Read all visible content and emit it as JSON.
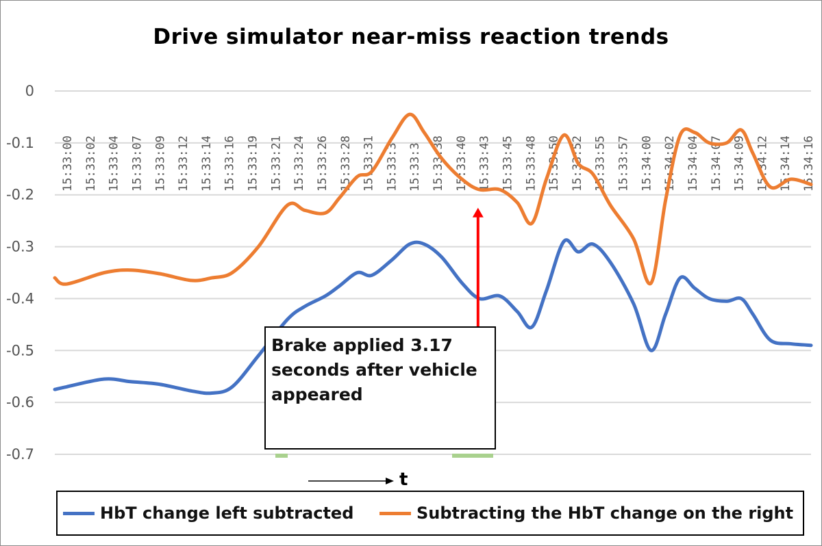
{
  "chart_data": {
    "type": "line",
    "title": "Drive simulator near-miss reaction trends",
    "xlabel": "t",
    "ylabel": "",
    "ylim": [
      -0.7,
      0
    ],
    "yticks": [
      "0",
      "-0.1",
      "-0.2",
      "-0.3",
      "-0.4",
      "-0.5",
      "-0.6",
      "-0.7"
    ],
    "yticks_values": [
      0,
      -0.1,
      -0.2,
      -0.3,
      -0.4,
      -0.5,
      -0.6,
      -0.7
    ],
    "grid": true,
    "legend_position": "bottom",
    "xticks": [
      "15:33:00",
      "15:33:02",
      "15:33:04",
      "15:33:07",
      "15:33:09",
      "15:33:12",
      "15:33:14",
      "15:33:16",
      "15:33:19",
      "15:33:21",
      "15:33:24",
      "15:33:26",
      "15:33:28",
      "15:33:31",
      "15:33:33",
      "15:33:36",
      "15:33:38",
      "15:33:40",
      "15:33:43",
      "15:33:45",
      "15:33:48",
      "15:33:50",
      "15:33:52",
      "15:33:55",
      "15:33:57",
      "15:34:00",
      "15:34:02",
      "15:34:04",
      "15:34:07",
      "15:34:09",
      "15:34:12",
      "15:34:14",
      "15:34:16"
    ],
    "xticks_shown": [
      "15:33:00",
      "15:33:02",
      "15:33:04",
      "15:33:07",
      "15:33:09",
      "15:33:12",
      "15:33:14",
      "15:33:16",
      "15:33:19",
      "15:33:21",
      "15:33:24",
      "15:33:26",
      "15:33:28",
      "15:33:31",
      "15:33:3",
      "15:33:3",
      "15:33:38",
      "15:33:40",
      "15:33:43",
      "15:33:45",
      "15:33:48",
      "15:33:50",
      "15:33:52",
      "15:33:55",
      "15:33:57",
      "15:34:00",
      "15:34:02",
      "15:34:04",
      "15:34:07",
      "15:34:09",
      "15:34:12",
      "15:34:14",
      "15:34:16"
    ],
    "series": [
      {
        "name": "HbT change left subtracted",
        "color": "#4472C4",
        "values": [
          -0.575,
          -0.57,
          -0.555,
          -0.56,
          -0.565,
          -0.578,
          -0.582,
          -0.57,
          -0.51,
          -0.44,
          -0.415,
          -0.395,
          -0.375,
          -0.35,
          -0.355,
          -0.325,
          -0.295,
          -0.295,
          -0.32,
          -0.37,
          -0.4,
          -0.395,
          -0.425,
          -0.455,
          -0.385,
          -0.29,
          -0.31,
          -0.295,
          -0.33,
          -0.41,
          -0.5,
          -0.43,
          -0.36,
          -0.38,
          -0.4,
          -0.405,
          -0.4,
          -0.43,
          -0.48,
          -0.487,
          -0.49
        ],
        "x": [
          0,
          0.4,
          1.7,
          2.6,
          3.6,
          4.7,
          5.4,
          6.1,
          7.0,
          8.0,
          8.6,
          9.3,
          9.8,
          10.4,
          10.9,
          11.6,
          12.2,
          12.7,
          13.3,
          14.0,
          14.6,
          15.3,
          15.9,
          16.4,
          16.9,
          17.5,
          18.0,
          18.5,
          19.1,
          19.9,
          20.5,
          21.0,
          21.5,
          22.0,
          22.5,
          23.1,
          23.6,
          24.0,
          24.6,
          25.3,
          26.0
        ]
      },
      {
        "name": "Subtracting the HbT change on the right",
        "color": "#ED7D31",
        "values": [
          -0.36,
          -0.372,
          -0.35,
          -0.345,
          -0.352,
          -0.365,
          -0.36,
          -0.35,
          -0.3,
          -0.22,
          -0.23,
          -0.235,
          -0.205,
          -0.165,
          -0.155,
          -0.09,
          -0.045,
          -0.08,
          -0.13,
          -0.17,
          -0.19,
          -0.19,
          -0.215,
          -0.255,
          -0.17,
          -0.085,
          -0.14,
          -0.16,
          -0.22,
          -0.285,
          -0.37,
          -0.21,
          -0.085,
          -0.08,
          -0.1,
          -0.1,
          -0.075,
          -0.12,
          -0.185,
          -0.17,
          -0.18
        ],
        "x": [
          0,
          0.4,
          1.7,
          2.6,
          3.6,
          4.7,
          5.4,
          6.1,
          7.0,
          8.0,
          8.6,
          9.3,
          9.8,
          10.4,
          10.9,
          11.6,
          12.2,
          12.7,
          13.3,
          14.0,
          14.6,
          15.3,
          15.9,
          16.4,
          16.9,
          17.5,
          18.0,
          18.5,
          19.1,
          19.9,
          20.5,
          21.0,
          21.5,
          22.0,
          22.5,
          23.1,
          23.6,
          24.0,
          24.6,
          25.3,
          26.0
        ]
      }
    ],
    "xlim": [
      0,
      26
    ],
    "annotations": [
      {
        "text": "Brake applied 3.17 seconds after vehicle appeared",
        "arrow_x": 14.55,
        "arrow_from_y": -0.685,
        "arrow_to_y": -0.225
      }
    ]
  },
  "annotation": {
    "lines": [
      "Brake applied 3.17",
      "seconds after vehicle",
      "appeared"
    ]
  },
  "axis_arrow_label": "t",
  "legend": {
    "left": "HbT change left subtracted",
    "right": "Subtracting the HbT change on the right"
  },
  "colors": {
    "arrow": "#FF0000",
    "grid": "#D9D9D9",
    "highlight": "#A9D18E"
  }
}
